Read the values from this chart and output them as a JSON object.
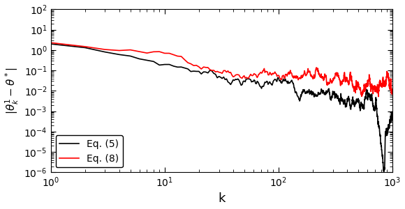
{
  "title": "",
  "xlabel": "k",
  "ylabel": "$|\\theta_k^1 - \\theta^*|$",
  "xlim": [
    1,
    1000
  ],
  "ylim": [
    1e-06,
    100.0
  ],
  "line1_color": "#000000",
  "line2_color": "#ff0000",
  "line1_label": "Eq. (5)",
  "line2_label": "Eq. (8)",
  "n_points": 1000,
  "line_width": 1.2,
  "legend_loc": "lower left",
  "figsize": [
    5.8,
    3.0
  ],
  "dpi": 100
}
